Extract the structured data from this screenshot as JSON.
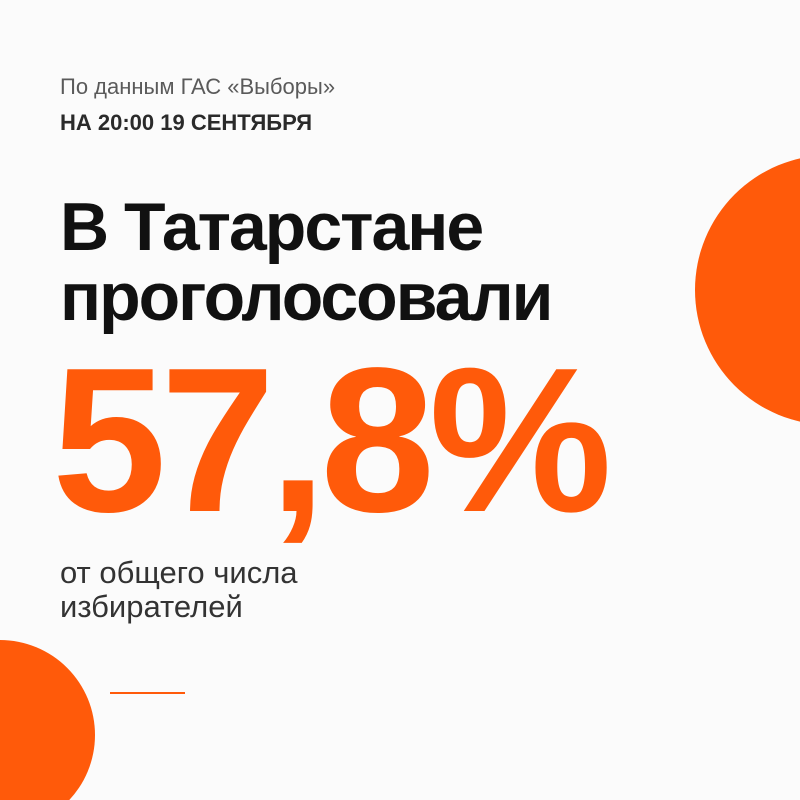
{
  "source": "По данным ГАС «Выборы»",
  "timestamp": "НА 20:00 19 СЕНТЯБРЯ",
  "headline": [
    "В Татарстане",
    "проголосовали"
  ],
  "figure": "57,8%",
  "caption": [
    "от общего числа",
    "избирателей"
  ]
}
